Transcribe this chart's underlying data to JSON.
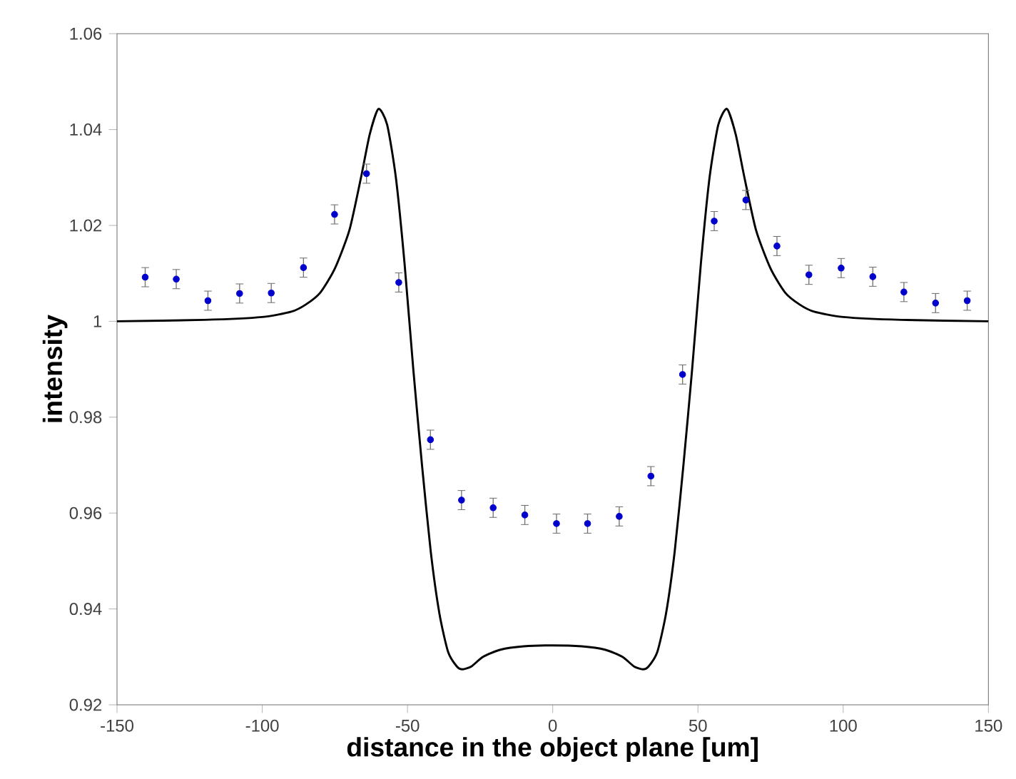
{
  "chart_data": {
    "type": "scatter",
    "xlabel": "distance in the object plane [um]",
    "ylabel": "intensity",
    "xlim": [
      -150,
      150
    ],
    "xticks": [
      -150,
      -100,
      -50,
      0,
      50,
      100,
      150
    ],
    "ylim": [
      0.92,
      1.06
    ],
    "yticks": [
      0.92,
      0.94,
      0.96,
      0.98,
      1,
      1.02,
      1.04,
      1.06
    ],
    "grid": false,
    "series": [
      {
        "type": "line",
        "color": "#000000",
        "marker": "none",
        "x": [
          -150,
          -120,
          -100,
          -90,
          -85,
          -80,
          -75,
          -70,
          -66,
          -63,
          -60,
          -57,
          -54,
          -51,
          -48,
          -45,
          -42,
          -39,
          -36,
          -33,
          -31,
          -28,
          -24,
          -18,
          -10,
          0,
          10,
          18,
          24,
          28,
          31,
          33,
          36,
          39,
          42,
          45,
          48,
          51,
          54,
          57,
          60,
          63,
          66,
          70,
          75,
          80,
          85,
          90,
          100,
          120,
          150
        ],
        "values": [
          1.0,
          1.0003,
          1.0009,
          1.002,
          1.0035,
          1.006,
          1.011,
          1.019,
          1.03,
          1.039,
          1.0443,
          1.041,
          1.03,
          1.012,
          0.99,
          0.97,
          0.952,
          0.939,
          0.931,
          0.928,
          0.9274,
          0.928,
          0.93,
          0.9315,
          0.9322,
          0.9324,
          0.9322,
          0.9315,
          0.93,
          0.928,
          0.9274,
          0.928,
          0.931,
          0.939,
          0.952,
          0.97,
          0.99,
          1.012,
          1.03,
          1.041,
          1.0443,
          1.039,
          1.03,
          1.019,
          1.011,
          1.006,
          1.0035,
          1.002,
          1.0009,
          1.0003,
          1.0
        ]
      },
      {
        "color": "#0000cc",
        "marker": "circle",
        "x": [
          -140.3,
          -129.6,
          -118.7,
          -107.8,
          -96.9,
          -85.8,
          -75.1,
          -64.1,
          -53,
          -42.1,
          -31.4,
          -20.5,
          -9.6,
          1.3,
          12,
          22.9,
          33.8,
          44.7,
          55.6,
          66.5,
          77.2,
          88.2,
          99.3,
          110.2,
          120.9,
          131.8,
          142.7
        ],
        "values": [
          1.0092,
          1.0088,
          1.0043,
          1.0058,
          1.0059,
          1.0112,
          1.0223,
          1.0308,
          1.0081,
          0.9753,
          0.9627,
          0.9611,
          0.9596,
          0.9578,
          0.9578,
          0.9593,
          0.9677,
          0.9889,
          1.0209,
          1.0253,
          1.0157,
          1.0097,
          1.0111,
          1.0093,
          1.0061,
          1.0038,
          1.0043
        ],
        "errors": [
          0.002,
          0.002,
          0.002,
          0.002,
          0.002,
          0.002,
          0.002,
          0.002,
          0.002,
          0.002,
          0.002,
          0.002,
          0.002,
          0.002,
          0.002,
          0.002,
          0.002,
          0.002,
          0.002,
          0.002,
          0.002,
          0.002,
          0.002,
          0.002,
          0.002,
          0.002,
          0.002
        ]
      }
    ]
  }
}
